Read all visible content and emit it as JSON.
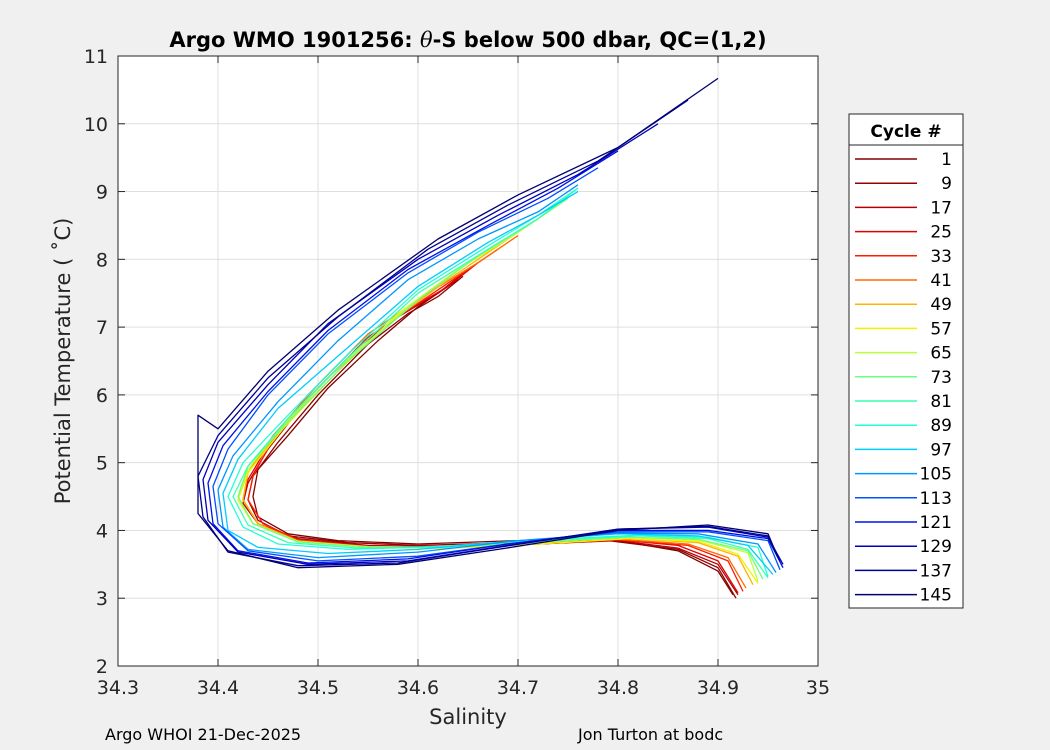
{
  "chart_data": {
    "type": "line",
    "title_prefix": "Argo WMO 1901256: ",
    "title_symbol": "θ",
    "title_suffix": "-S below 500 dbar,  QC=(1,2)",
    "xlabel": "Salinity",
    "ylabel": "Potential Temperature ( ˚C)",
    "xlim": [
      34.3,
      35
    ],
    "ylim": [
      2,
      11
    ],
    "xticks": [
      "34.3",
      "34.4",
      "34.5",
      "34.6",
      "34.7",
      "34.8",
      "34.9",
      "35"
    ],
    "yticks": [
      "2",
      "3",
      "4",
      "5",
      "6",
      "7",
      "8",
      "9",
      "10",
      "11"
    ],
    "grid": true,
    "legend": {
      "title": "Cycle #",
      "placement": "right",
      "entries": [
        {
          "label": "1",
          "color": "#800000"
        },
        {
          "label": "9",
          "color": "#940000"
        },
        {
          "label": "17",
          "color": "#b40000"
        },
        {
          "label": "25",
          "color": "#e00000"
        },
        {
          "label": "33",
          "color": "#ff1a00"
        },
        {
          "label": "41",
          "color": "#ff6a00"
        },
        {
          "label": "49",
          "color": "#ffb400"
        },
        {
          "label": "57",
          "color": "#f2f200"
        },
        {
          "label": "65",
          "color": "#b8ff3c"
        },
        {
          "label": "73",
          "color": "#6cff80"
        },
        {
          "label": "81",
          "color": "#3cffb0"
        },
        {
          "label": "89",
          "color": "#20ffd8"
        },
        {
          "label": "97",
          "color": "#00ccff"
        },
        {
          "label": "105",
          "color": "#0096ff"
        },
        {
          "label": "113",
          "color": "#0050ff"
        },
        {
          "label": "121",
          "color": "#0010e8"
        },
        {
          "label": "129",
          "color": "#0000b8"
        },
        {
          "label": "137",
          "color": "#000096"
        },
        {
          "label": "145",
          "color": "#000070"
        }
      ]
    },
    "series": [
      {
        "name": "1",
        "color": "#800000",
        "x": [
          34.64,
          34.62,
          34.6,
          34.56,
          34.51,
          34.47,
          34.44,
          34.435,
          34.44,
          34.47,
          34.52,
          34.6,
          34.7,
          34.8,
          34.86,
          34.9,
          34.915
        ],
        "y": [
          7.7,
          7.5,
          7.3,
          6.8,
          6.1,
          5.4,
          4.9,
          4.5,
          4.2,
          3.95,
          3.85,
          3.8,
          3.85,
          3.85,
          3.7,
          3.4,
          3.05
        ]
      },
      {
        "name": "9",
        "color": "#940000",
        "x": [
          34.645,
          34.62,
          34.59,
          34.55,
          34.5,
          34.46,
          34.435,
          34.43,
          34.44,
          34.47,
          34.53,
          34.6,
          34.7,
          34.79,
          34.86,
          34.9,
          34.918
        ],
        "y": [
          7.75,
          7.45,
          7.2,
          6.75,
          6.0,
          5.3,
          4.8,
          4.45,
          4.15,
          3.92,
          3.82,
          3.78,
          3.82,
          3.85,
          3.72,
          3.45,
          3.0
        ]
      },
      {
        "name": "17",
        "color": "#b40000",
        "x": [
          34.65,
          34.62,
          34.58,
          34.54,
          34.49,
          34.45,
          34.43,
          34.425,
          34.44,
          34.48,
          34.55,
          34.63,
          34.72,
          34.8,
          34.86,
          34.9,
          34.92
        ],
        "y": [
          7.85,
          7.5,
          7.15,
          6.7,
          5.95,
          5.2,
          4.7,
          4.4,
          4.1,
          3.88,
          3.78,
          3.76,
          3.8,
          3.85,
          3.74,
          3.5,
          3.05
        ]
      },
      {
        "name": "25",
        "color": "#e00000",
        "x": [
          34.66,
          34.63,
          34.59,
          34.54,
          34.49,
          34.45,
          34.43,
          34.425,
          34.44,
          34.48,
          34.55,
          34.63,
          34.72,
          34.8,
          34.86,
          34.9,
          34.92
        ],
        "y": [
          7.95,
          7.6,
          7.25,
          6.75,
          6.0,
          5.25,
          4.75,
          4.45,
          4.1,
          3.86,
          3.77,
          3.75,
          3.8,
          3.86,
          3.78,
          3.55,
          3.08
        ]
      },
      {
        "name": "33",
        "color": "#ff1a00",
        "x": [
          34.68,
          34.64,
          34.6,
          34.55,
          34.5,
          34.455,
          34.435,
          34.43,
          34.445,
          34.48,
          34.55,
          34.63,
          34.72,
          34.8,
          34.87,
          34.91,
          34.925
        ],
        "y": [
          8.15,
          7.75,
          7.35,
          6.85,
          6.1,
          5.35,
          4.8,
          4.45,
          4.1,
          3.86,
          3.76,
          3.75,
          3.8,
          3.86,
          3.78,
          3.55,
          3.1
        ]
      },
      {
        "name": "41",
        "color": "#ff6a00",
        "x": [
          34.7,
          34.66,
          34.61,
          34.55,
          34.5,
          34.455,
          34.43,
          34.425,
          34.44,
          34.48,
          34.55,
          34.63,
          34.72,
          34.8,
          34.87,
          34.91,
          34.928
        ],
        "y": [
          8.35,
          7.95,
          7.5,
          6.9,
          6.15,
          5.4,
          4.85,
          4.45,
          4.1,
          3.85,
          3.76,
          3.75,
          3.8,
          3.87,
          3.8,
          3.6,
          3.15
        ]
      },
      {
        "name": "49",
        "color": "#ffb400",
        "x": [
          34.72,
          34.68,
          34.63,
          34.57,
          34.51,
          34.46,
          34.43,
          34.425,
          34.44,
          34.48,
          34.55,
          34.63,
          34.72,
          34.81,
          34.88,
          34.92,
          34.935
        ],
        "y": [
          8.6,
          8.2,
          7.7,
          7.05,
          6.25,
          5.45,
          4.85,
          4.45,
          4.1,
          3.84,
          3.75,
          3.74,
          3.8,
          3.88,
          3.82,
          3.62,
          3.2
        ]
      },
      {
        "name": "57",
        "color": "#f2f200",
        "x": [
          34.73,
          34.69,
          34.64,
          34.58,
          34.52,
          34.465,
          34.43,
          34.42,
          34.435,
          34.48,
          34.55,
          34.63,
          34.72,
          34.81,
          34.88,
          34.92,
          34.94
        ],
        "y": [
          8.7,
          8.3,
          7.85,
          7.2,
          6.35,
          5.5,
          4.85,
          4.45,
          4.1,
          3.84,
          3.75,
          3.74,
          3.8,
          3.88,
          3.84,
          3.65,
          3.22
        ]
      },
      {
        "name": "65",
        "color": "#b8ff3c",
        "x": [
          34.74,
          34.7,
          34.65,
          34.59,
          34.52,
          34.465,
          34.43,
          34.42,
          34.435,
          34.48,
          34.55,
          34.63,
          34.72,
          34.81,
          34.88,
          34.93,
          34.94
        ],
        "y": [
          8.8,
          8.4,
          7.95,
          7.3,
          6.4,
          5.55,
          4.9,
          4.5,
          4.1,
          3.84,
          3.76,
          3.75,
          3.82,
          3.9,
          3.86,
          3.67,
          3.25
        ]
      },
      {
        "name": "73",
        "color": "#6cff80",
        "x": [
          34.75,
          34.71,
          34.66,
          34.6,
          34.53,
          34.47,
          34.43,
          34.42,
          34.435,
          34.48,
          34.55,
          34.63,
          34.72,
          34.81,
          34.88,
          34.93,
          34.945
        ],
        "y": [
          8.9,
          8.5,
          8.05,
          7.4,
          6.5,
          5.6,
          4.95,
          4.5,
          4.1,
          3.83,
          3.75,
          3.75,
          3.83,
          3.9,
          3.87,
          3.7,
          3.28
        ]
      },
      {
        "name": "81",
        "color": "#3cffb0",
        "x": [
          34.76,
          34.72,
          34.67,
          34.6,
          34.53,
          34.47,
          34.43,
          34.415,
          34.43,
          34.47,
          34.54,
          34.62,
          34.72,
          34.82,
          34.89,
          34.93,
          34.95
        ],
        "y": [
          9.05,
          8.6,
          8.15,
          7.5,
          6.55,
          5.65,
          4.95,
          4.5,
          4.08,
          3.82,
          3.74,
          3.76,
          3.85,
          3.92,
          3.88,
          3.72,
          3.3
        ]
      },
      {
        "name": "89",
        "color": "#20ffd8",
        "x": [
          34.76,
          34.72,
          34.67,
          34.6,
          34.53,
          34.47,
          34.425,
          34.41,
          34.425,
          34.46,
          34.53,
          34.62,
          34.72,
          34.82,
          34.89,
          34.94,
          34.95
        ],
        "y": [
          9.05,
          8.65,
          8.2,
          7.55,
          6.6,
          5.7,
          5.0,
          4.5,
          4.05,
          3.8,
          3.72,
          3.76,
          3.86,
          3.93,
          3.9,
          3.75,
          3.32
        ]
      },
      {
        "name": "97",
        "color": "#00ccff",
        "x": [
          34.76,
          34.72,
          34.67,
          34.6,
          34.53,
          34.46,
          34.42,
          34.405,
          34.41,
          34.44,
          34.51,
          34.6,
          34.7,
          34.8,
          34.88,
          34.93,
          34.955
        ],
        "y": [
          9.0,
          8.65,
          8.25,
          7.6,
          6.7,
          5.8,
          5.05,
          4.55,
          4.0,
          3.75,
          3.66,
          3.72,
          3.85,
          3.95,
          3.92,
          3.78,
          3.35
        ]
      },
      {
        "name": "105",
        "color": "#0096ff",
        "x": [
          34.76,
          34.72,
          34.66,
          34.59,
          34.52,
          34.46,
          34.415,
          34.4,
          34.405,
          34.43,
          34.5,
          34.6,
          34.7,
          34.8,
          34.88,
          34.94,
          34.958
        ],
        "y": [
          9.1,
          8.7,
          8.3,
          7.7,
          6.8,
          5.9,
          5.1,
          4.6,
          4.05,
          3.72,
          3.6,
          3.68,
          3.85,
          3.96,
          3.95,
          3.8,
          3.38
        ]
      },
      {
        "name": "113",
        "color": "#0050ff",
        "x": [
          34.78,
          34.73,
          34.66,
          34.59,
          34.51,
          34.45,
          34.41,
          34.395,
          34.4,
          34.43,
          34.5,
          34.6,
          34.7,
          34.8,
          34.89,
          34.95,
          34.962
        ],
        "y": [
          9.35,
          8.9,
          8.4,
          7.8,
          6.9,
          6.0,
          5.2,
          4.65,
          4.1,
          3.7,
          3.55,
          3.62,
          3.82,
          3.98,
          3.98,
          3.85,
          3.42
        ]
      },
      {
        "name": "121",
        "color": "#0010e8",
        "x": [
          34.8,
          34.74,
          34.67,
          34.59,
          34.51,
          34.45,
          34.405,
          34.39,
          34.395,
          34.42,
          34.49,
          34.59,
          34.69,
          34.8,
          34.89,
          34.95,
          34.965
        ],
        "y": [
          9.6,
          9.05,
          8.5,
          7.85,
          6.95,
          6.05,
          5.25,
          4.7,
          4.1,
          3.7,
          3.52,
          3.58,
          3.8,
          4.0,
          4.0,
          3.88,
          3.45
        ]
      },
      {
        "name": "129",
        "color": "#0000b8",
        "x": [
          34.84,
          34.76,
          34.68,
          34.6,
          34.51,
          34.45,
          34.4,
          34.385,
          34.39,
          34.42,
          34.49,
          34.59,
          34.69,
          34.8,
          34.89,
          34.95,
          34.965
        ],
        "y": [
          10.0,
          9.25,
          8.65,
          8.0,
          7.05,
          6.15,
          5.3,
          4.75,
          4.15,
          3.68,
          3.5,
          3.55,
          3.78,
          4.02,
          4.05,
          3.9,
          3.5
        ]
      },
      {
        "name": "137",
        "color": "#000096",
        "x": [
          34.87,
          34.78,
          34.69,
          34.61,
          34.52,
          34.45,
          34.4,
          34.38,
          34.385,
          34.41,
          34.48,
          34.58,
          34.68,
          34.8,
          34.89,
          34.95,
          34.962
        ],
        "y": [
          10.35,
          9.45,
          8.8,
          8.15,
          7.15,
          6.25,
          5.4,
          4.8,
          4.2,
          3.68,
          3.48,
          3.52,
          3.75,
          4.02,
          4.06,
          3.92,
          3.55
        ]
      },
      {
        "name": "145",
        "color": "#000070",
        "x": [
          34.9,
          34.8,
          34.7,
          34.62,
          34.52,
          34.45,
          34.4,
          34.38,
          34.38,
          34.41,
          34.48,
          34.58,
          34.68,
          34.8,
          34.89,
          34.95,
          34.96
        ],
        "y": [
          10.67,
          9.65,
          8.95,
          8.3,
          7.25,
          6.35,
          5.5,
          5.7,
          4.25,
          3.7,
          3.45,
          3.5,
          3.72,
          4.0,
          4.08,
          3.95,
          3.6
        ]
      }
    ]
  },
  "footer": {
    "left": "Argo WHOI 21-Dec-2025",
    "right": "Jon Turton at bodc"
  }
}
